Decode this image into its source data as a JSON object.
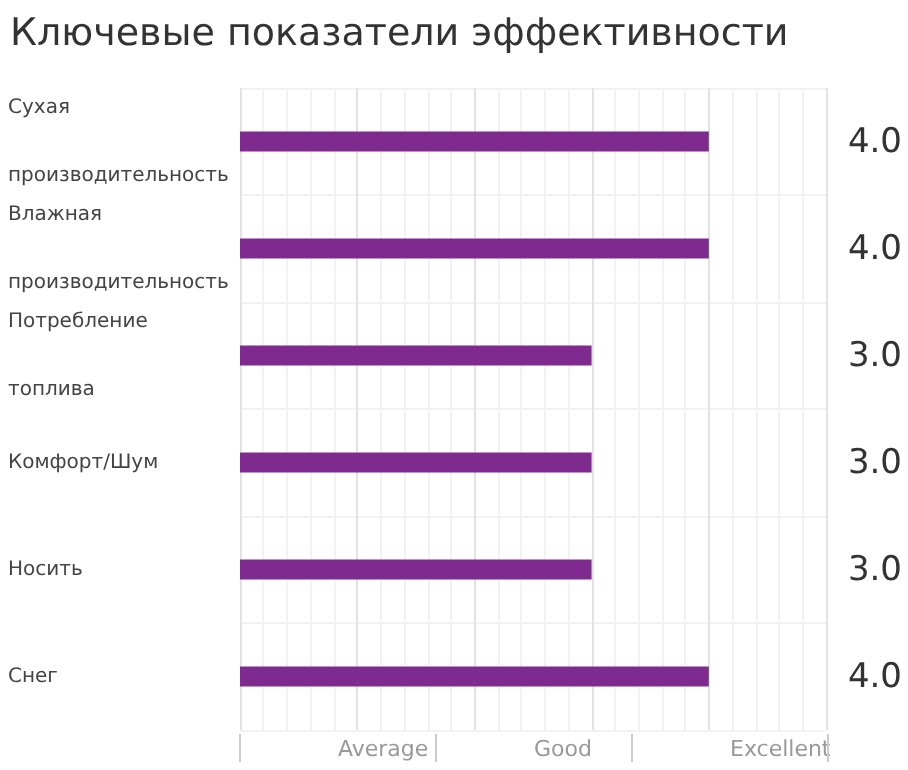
{
  "chart_data": {
    "type": "bar",
    "orientation": "horizontal",
    "title": "Ключевые показатели эффективности",
    "categories": [
      "Сухая производительность",
      "Влажная производительность",
      "Потребление топлива",
      "Комфорт/Шум",
      "Носить",
      "Снег"
    ],
    "values": [
      4,
      4,
      3,
      3,
      3,
      4
    ],
    "color": "#7e2a8e",
    "value_labels": [
      "4.0",
      "4.0",
      "3.0",
      "3.0",
      "3.0",
      "4.0"
    ],
    "xlim": [
      0,
      5
    ],
    "annotations": [
      "Average",
      "Good",
      "Excellent"
    ],
    "grid": true
  }
}
